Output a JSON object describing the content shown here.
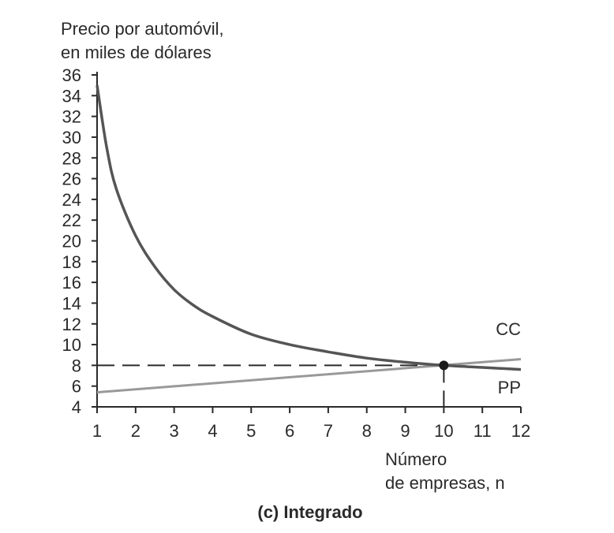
{
  "chart_data": {
    "type": "line",
    "caption": "(c) Integrado",
    "ylabel_lines": [
      "Precio por automóvil,",
      "en miles de dólares"
    ],
    "xlabel_lines": [
      "Número",
      "de empresas, n"
    ],
    "xlim": [
      1,
      12
    ],
    "ylim": [
      4,
      36
    ],
    "x_ticks": [
      1,
      2,
      3,
      4,
      5,
      6,
      7,
      8,
      9,
      10,
      11,
      12
    ],
    "y_ticks": [
      4,
      6,
      8,
      10,
      12,
      14,
      16,
      18,
      20,
      22,
      24,
      26,
      28,
      30,
      32,
      34,
      36
    ],
    "grid": false,
    "series": [
      {
        "name": "CC",
        "color": "#555555",
        "x": [
          1,
          1.25,
          1.5,
          2,
          2.5,
          3,
          3.5,
          4,
          5,
          6,
          7,
          8,
          9,
          10,
          11,
          12
        ],
        "y": [
          35,
          29,
          25,
          20.5,
          17.5,
          15.3,
          13.8,
          12.7,
          11,
          10,
          9.3,
          8.7,
          8.3,
          8.0,
          7.8,
          7.6
        ]
      },
      {
        "name": "PP",
        "color": "#999999",
        "x": [
          1,
          12
        ],
        "y": [
          5.4,
          8.6
        ]
      }
    ],
    "equilibrium": {
      "x": 10,
      "y": 8
    }
  }
}
